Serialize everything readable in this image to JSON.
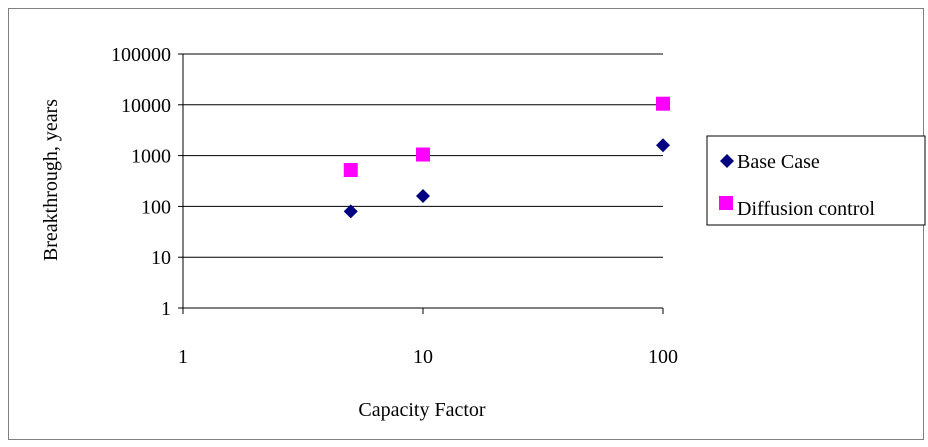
{
  "chart_data": {
    "type": "scatter",
    "title": "",
    "xlabel": "Capacity Factor",
    "ylabel": "Breakthrough, years",
    "x_scale": "log",
    "y_scale": "log",
    "xlim": [
      1,
      100
    ],
    "ylim": [
      1,
      100000
    ],
    "x_ticks": [
      "1",
      "10",
      "100"
    ],
    "y_ticks": [
      "1",
      "10",
      "100",
      "1000",
      "10000",
      "100000"
    ],
    "grid": "horizontal",
    "legend_position": "right",
    "series": [
      {
        "name": "Base Case",
        "marker": "diamond",
        "color": "#000080",
        "points": [
          {
            "x": 5,
            "y": 80
          },
          {
            "x": 10,
            "y": 160
          },
          {
            "x": 100,
            "y": 1600
          }
        ]
      },
      {
        "name": "Diffusion control",
        "marker": "square",
        "color": "#ff00ff",
        "points": [
          {
            "x": 5,
            "y": 520
          },
          {
            "x": 10,
            "y": 1050
          },
          {
            "x": 100,
            "y": 10500
          }
        ]
      }
    ]
  }
}
